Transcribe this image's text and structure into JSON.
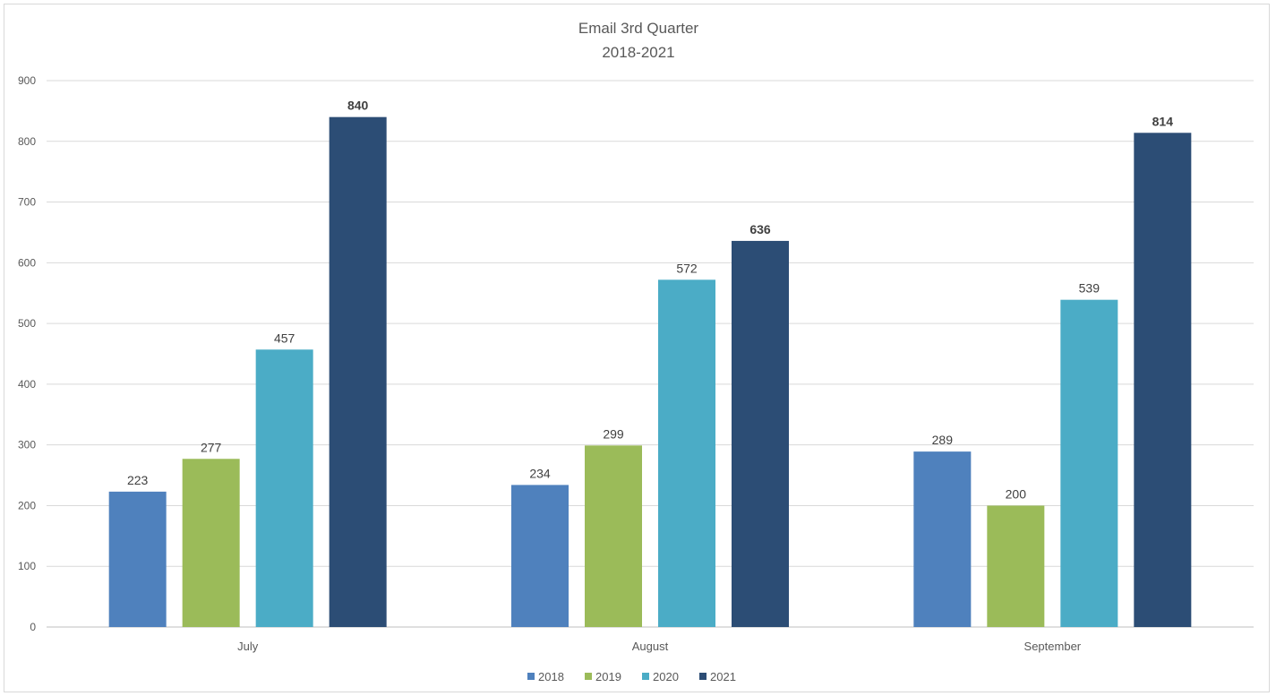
{
  "chart_data": {
    "type": "bar",
    "title": "Email 3rd Quarter",
    "subtitle": "2018-2021",
    "categories": [
      "July",
      "August",
      "September"
    ],
    "series": [
      {
        "name": "2018",
        "color": "#4f81bd",
        "values": [
          223,
          234,
          289
        ],
        "labels_bold": false
      },
      {
        "name": "2019",
        "color": "#9bbb59",
        "values": [
          277,
          299,
          200
        ],
        "labels_bold": false
      },
      {
        "name": "2020",
        "color": "#4bacc6",
        "values": [
          457,
          572,
          539
        ],
        "labels_bold": false
      },
      {
        "name": "2021",
        "color": "#2c4d75",
        "values": [
          840,
          636,
          814
        ],
        "labels_bold": true
      }
    ],
    "ylim": [
      0,
      900
    ],
    "yticks": [
      0,
      100,
      200,
      300,
      400,
      500,
      600,
      700,
      800,
      900
    ],
    "grid": true,
    "legend_position": "bottom",
    "xlabel": "",
    "ylabel": ""
  }
}
